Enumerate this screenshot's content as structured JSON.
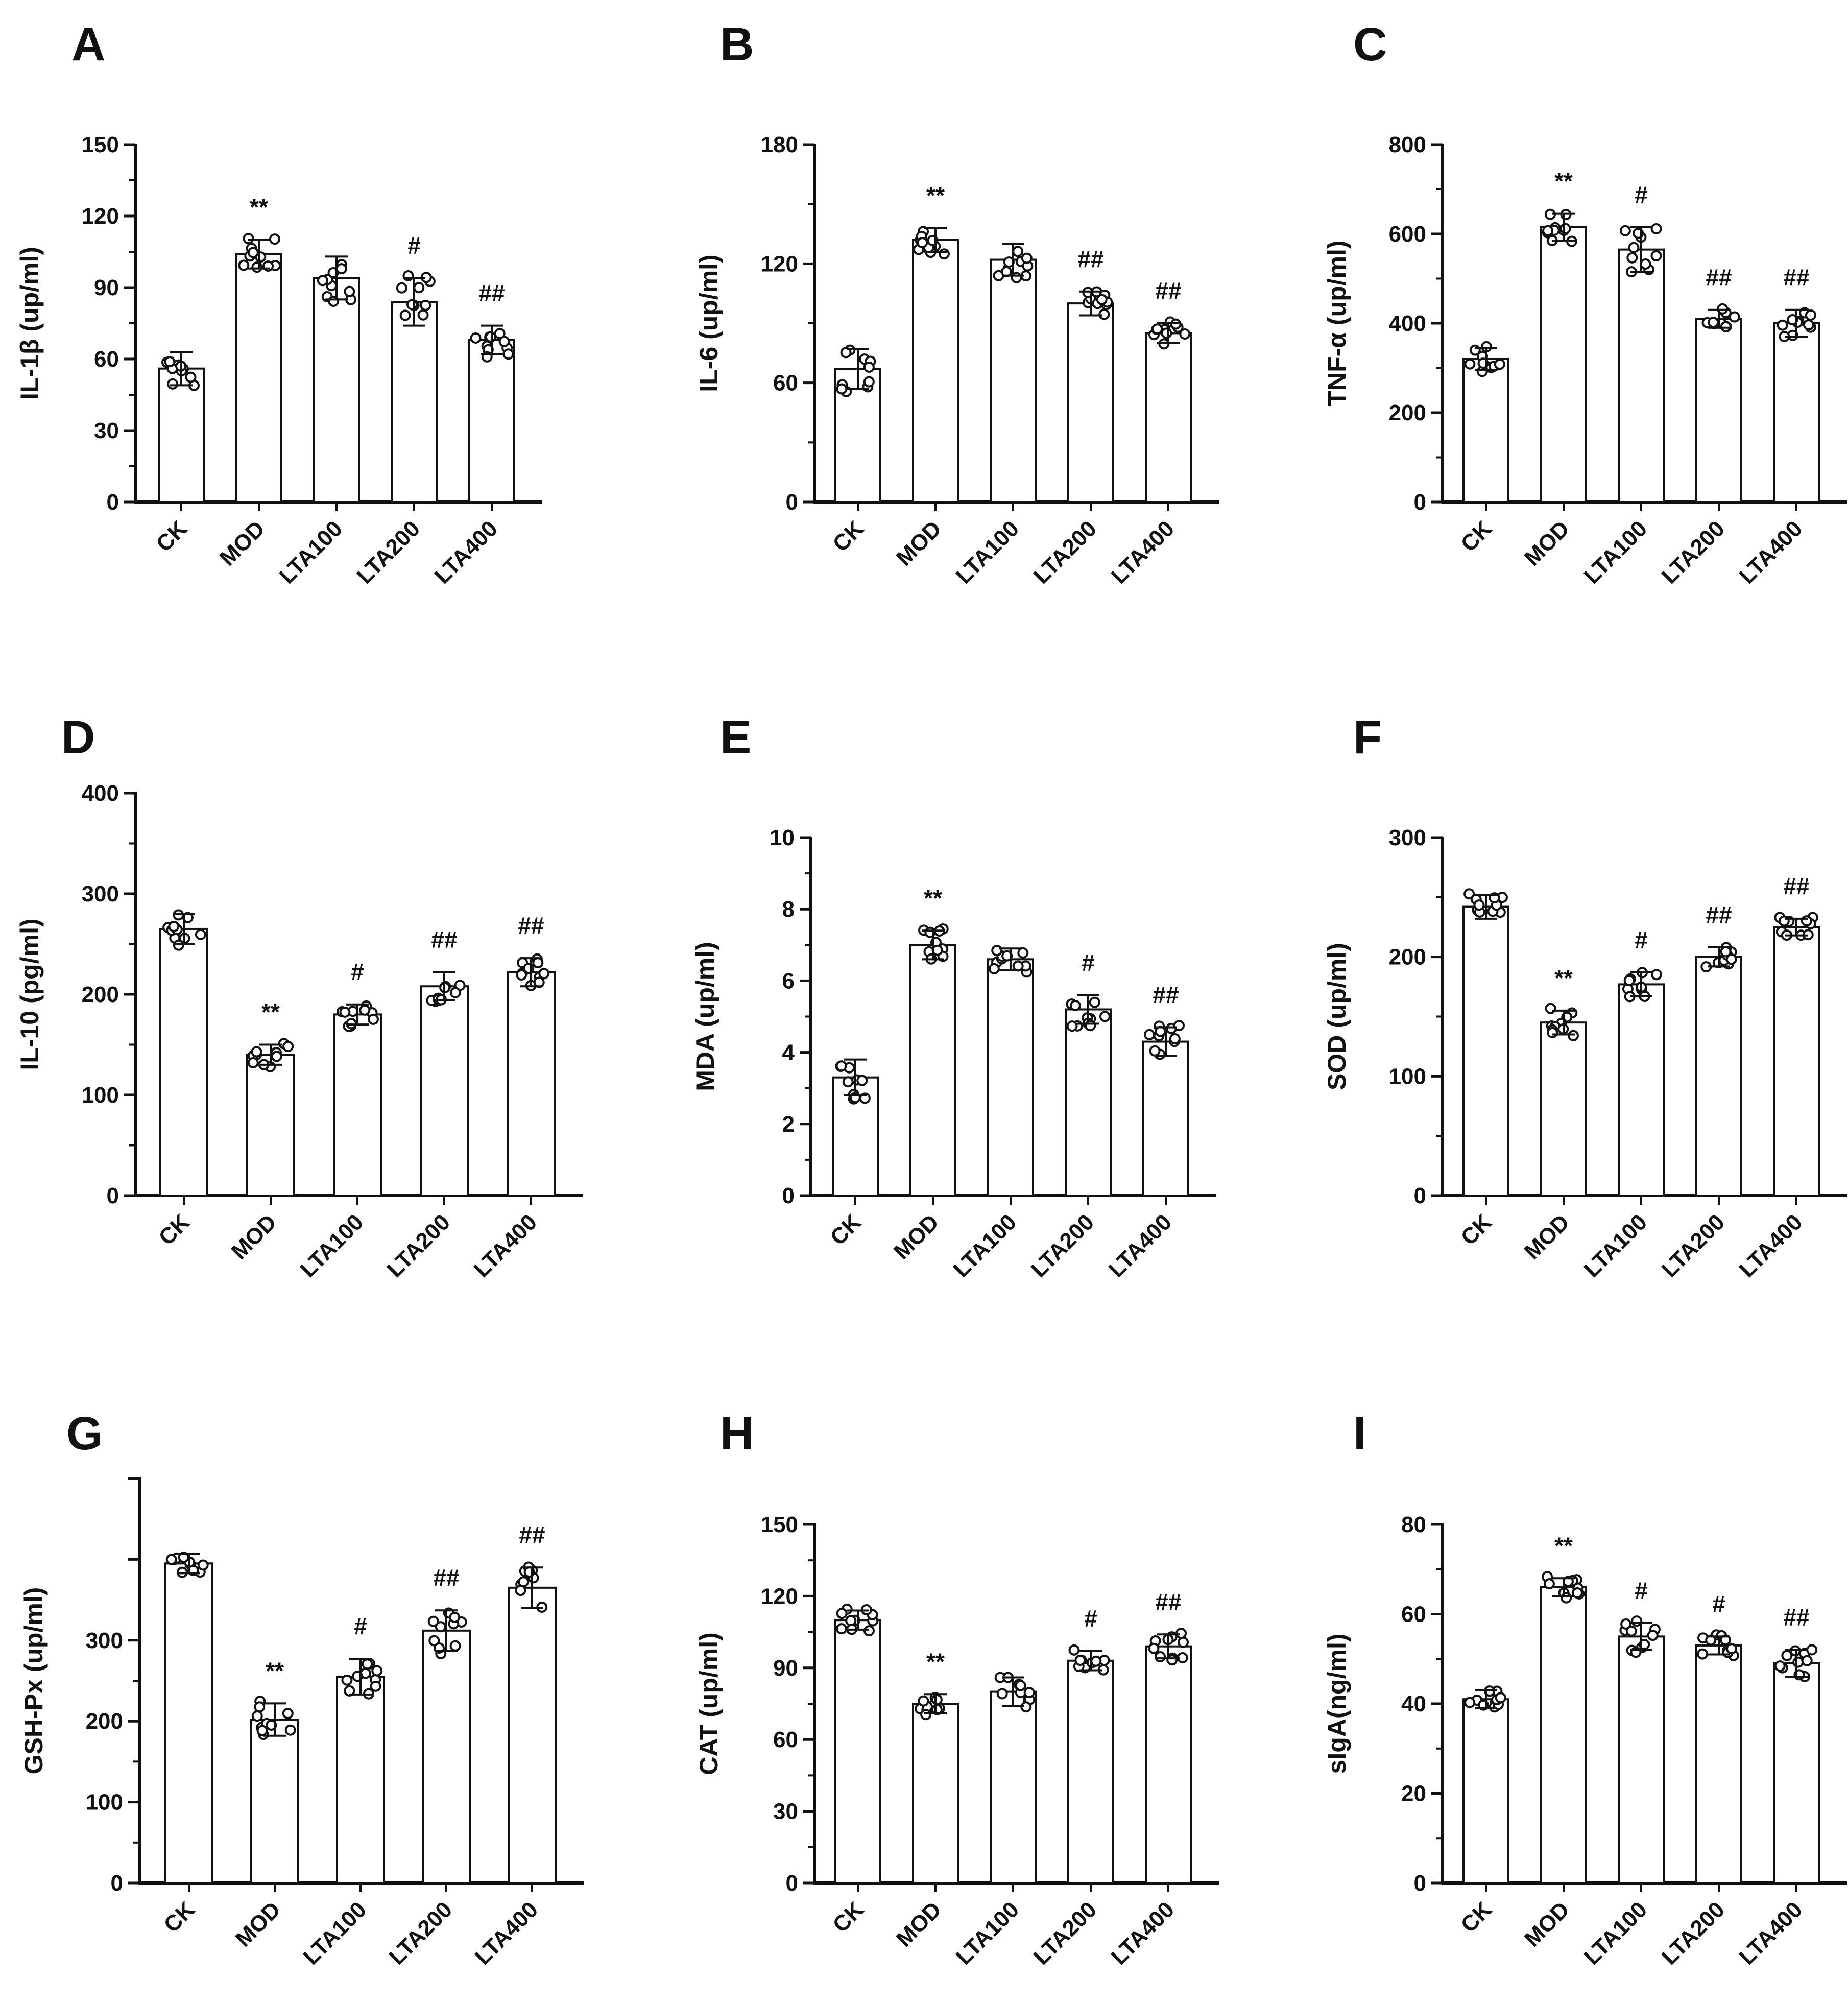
{
  "chart_data": [
    {
      "type": "bar",
      "panel": "A",
      "ylabel": "IL-1β (up/ml)",
      "ylim": [
        0,
        150
      ],
      "ticks": [
        0,
        30,
        60,
        90,
        120,
        150
      ],
      "categories": [
        "CK",
        "MOD",
        "LTA100",
        "LTA200",
        "LTA400"
      ],
      "values": [
        56,
        104,
        94,
        84,
        68
      ],
      "errors": [
        7,
        6,
        9,
        10,
        6
      ],
      "annotations": [
        "",
        "**",
        "",
        "#",
        "##"
      ]
    },
    {
      "type": "bar",
      "panel": "B",
      "ylabel": "IL-6 (up/ml)",
      "ylim": [
        0,
        180
      ],
      "ticks": [
        0,
        60,
        120,
        180
      ],
      "categories": [
        "CK",
        "MOD",
        "LTA100",
        "LTA200",
        "LTA400"
      ],
      "values": [
        67,
        132,
        122,
        100,
        85
      ],
      "errors": [
        10,
        6,
        8,
        6,
        5
      ],
      "annotations": [
        "",
        "**",
        "",
        "##",
        "##"
      ]
    },
    {
      "type": "bar",
      "panel": "C",
      "ylabel": "TNF-α (up/ml)",
      "ylim": [
        0,
        800
      ],
      "ticks": [
        0,
        200,
        400,
        600,
        800
      ],
      "categories": [
        "CK",
        "MOD",
        "LTA100",
        "LTA200",
        "LTA400"
      ],
      "values": [
        320,
        615,
        565,
        410,
        400
      ],
      "errors": [
        25,
        30,
        50,
        20,
        30
      ],
      "annotations": [
        "",
        "**",
        "#",
        "##",
        "##"
      ]
    },
    {
      "type": "bar",
      "panel": "D",
      "ylabel": "IL-10 (pg/ml)",
      "ylim": [
        0,
        400
      ],
      "ticks": [
        0,
        100,
        200,
        300,
        400
      ],
      "categories": [
        "CK",
        "MOD",
        "LTA100",
        "LTA200",
        "LTA400"
      ],
      "values": [
        265,
        140,
        180,
        208,
        222
      ],
      "errors": [
        15,
        10,
        10,
        14,
        14
      ],
      "annotations": [
        "",
        "**",
        "#",
        "##",
        "##"
      ]
    },
    {
      "type": "bar",
      "panel": "E",
      "ylabel": "MDA (up/ml)",
      "ylim": [
        0,
        10
      ],
      "ticks": [
        0,
        2,
        4,
        6,
        8,
        10
      ],
      "categories": [
        "CK",
        "MOD",
        "LTA100",
        "LTA200",
        "LTA400"
      ],
      "values": [
        3.3,
        7.0,
        6.6,
        5.2,
        4.3
      ],
      "errors": [
        0.5,
        0.4,
        0.3,
        0.4,
        0.4
      ],
      "annotations": [
        "",
        "**",
        "",
        "#",
        "##"
      ]
    },
    {
      "type": "bar",
      "panel": "F",
      "ylabel": "SOD (up/ml)",
      "ylim": [
        0,
        300
      ],
      "ticks": [
        0,
        100,
        200,
        300
      ],
      "categories": [
        "CK",
        "MOD",
        "LTA100",
        "LTA200",
        "LTA400"
      ],
      "values": [
        242,
        145,
        177,
        200,
        225
      ],
      "errors": [
        10,
        10,
        10,
        8,
        7
      ],
      "annotations": [
        "",
        "**",
        "#",
        "##",
        "##"
      ]
    },
    {
      "type": "bar",
      "panel": "G",
      "ylabel": "GSH-Px (up/ml)",
      "ylim": [
        0,
        500
      ],
      "ticks": [
        0,
        100,
        200,
        300
      ],
      "categories": [
        "CK",
        "MOD",
        "LTA100",
        "LTA200",
        "LTA400"
      ],
      "values": [
        395,
        202,
        255,
        312,
        365
      ],
      "errors": [
        12,
        20,
        22,
        25,
        25
      ],
      "annotations": [
        "",
        "**",
        "#",
        "##",
        "##"
      ]
    },
    {
      "type": "bar",
      "panel": "H",
      "ylabel": "CAT (up/ml)",
      "ylim": [
        0,
        150
      ],
      "ticks": [
        0,
        30,
        60,
        90,
        120,
        150
      ],
      "categories": [
        "CK",
        "MOD",
        "LTA100",
        "LTA200",
        "LTA400"
      ],
      "values": [
        110,
        75,
        80,
        93,
        99
      ],
      "errors": [
        4,
        4,
        6,
        4,
        5
      ],
      "annotations": [
        "",
        "**",
        "",
        "#",
        "##"
      ]
    },
    {
      "type": "bar",
      "panel": "I",
      "ylabel": "sIgA(ng/ml)",
      "ylim": [
        0,
        80
      ],
      "ticks": [
        0,
        20,
        40,
        60,
        80
      ],
      "categories": [
        "CK",
        "MOD",
        "LTA100",
        "LTA200",
        "LTA400"
      ],
      "values": [
        41,
        66,
        55,
        53,
        49
      ],
      "errors": [
        2,
        2,
        3,
        2,
        3
      ],
      "annotations": [
        "",
        "**",
        "#",
        "#",
        "##"
      ]
    }
  ]
}
